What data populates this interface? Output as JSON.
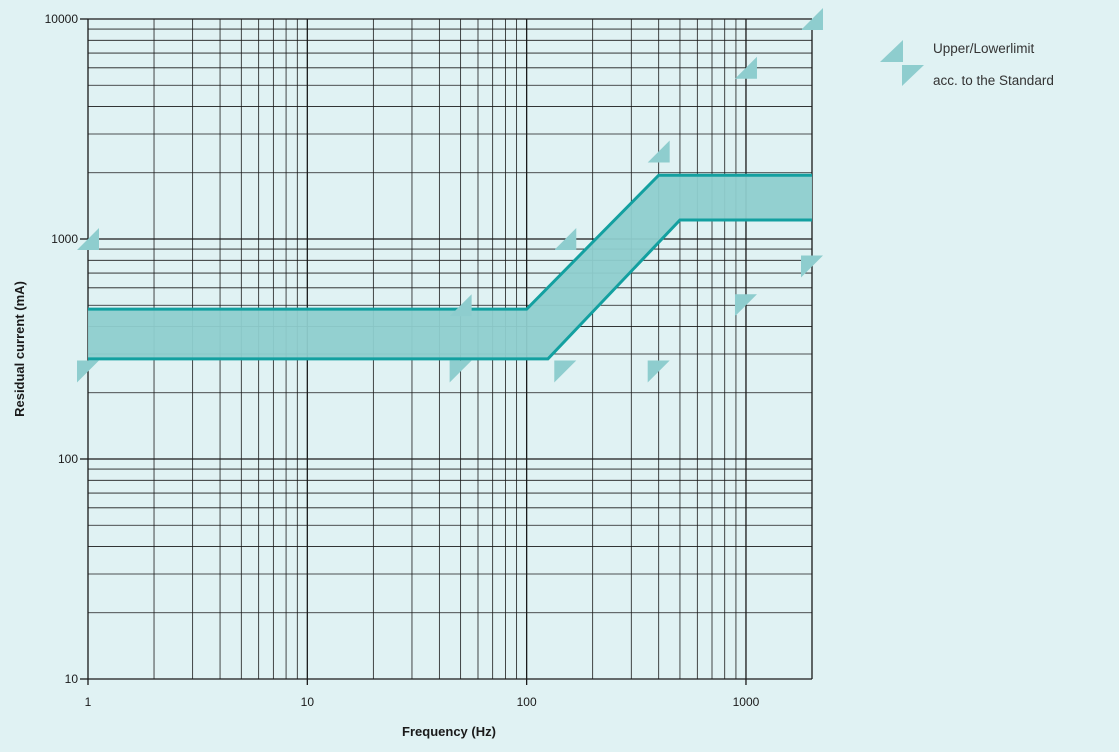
{
  "chart_data": {
    "type": "line",
    "title": "",
    "xlabel": "Frequency (Hz)",
    "ylabel": "Residual current (mA)",
    "xscale": "log",
    "yscale": "log",
    "xlim": [
      1,
      2000
    ],
    "ylim": [
      10,
      10000
    ],
    "x_ticks": [
      1,
      10,
      100,
      1000
    ],
    "x_tick_labels": [
      "1",
      "10",
      "100",
      "1000"
    ],
    "y_ticks": [
      10,
      100,
      1000,
      10000
    ],
    "y_tick_labels": [
      "10",
      "100",
      "1000",
      "10000"
    ],
    "grid": true,
    "series": [
      {
        "x": [
          1,
          100,
          400,
          2000
        ],
        "y": [
          480,
          480,
          1950,
          1950
        ]
      },
      {
        "x": [
          1,
          125,
          500,
          2000
        ],
        "y": [
          285,
          285,
          1220,
          1220
        ]
      }
    ],
    "band_fill": true,
    "markers": {
      "upper": [
        [
          1,
          1000
        ],
        [
          50,
          500
        ],
        [
          150,
          1000
        ],
        [
          400,
          2500
        ],
        [
          1000,
          6000
        ],
        [
          2000,
          10000
        ]
      ],
      "lower": [
        [
          1,
          250
        ],
        [
          50,
          250
        ],
        [
          150,
          250
        ],
        [
          400,
          250
        ],
        [
          1000,
          500
        ],
        [
          2000,
          750
        ]
      ]
    },
    "legend": {
      "position": "top-right",
      "line1": "Upper/Lowerlimit",
      "line2": "acc. to the Standard"
    },
    "colors": {
      "background": "#e0f2f3",
      "band_fill": "#8ecdce",
      "band_line": "#13a0a0",
      "marker": "#8ecdce",
      "grid": "#1a1a1a"
    }
  }
}
